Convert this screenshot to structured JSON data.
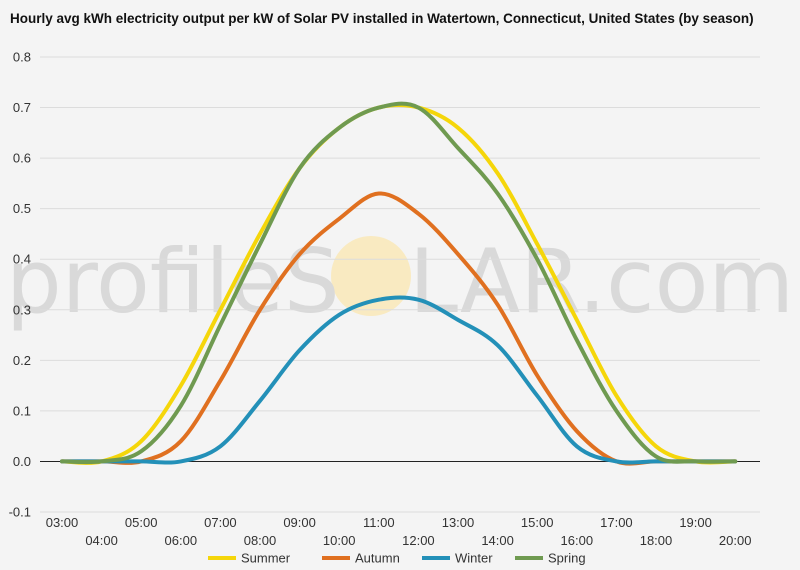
{
  "chart_data": {
    "type": "line",
    "title": "Hourly avg kWh electricity output per kW of Solar PV installed in Watertown, Connecticut, United States (by season)",
    "xlabel": "",
    "ylabel": "",
    "categories": [
      "03:00",
      "04:00",
      "05:00",
      "06:00",
      "07:00",
      "08:00",
      "09:00",
      "10:00",
      "11:00",
      "12:00",
      "13:00",
      "14:00",
      "15:00",
      "16:00",
      "17:00",
      "18:00",
      "19:00",
      "20:00"
    ],
    "ylim": [
      -0.1,
      0.8
    ],
    "yticks": [
      "-0.1",
      "0.0",
      "0.1",
      "0.2",
      "0.3",
      "0.4",
      "0.5",
      "0.6",
      "0.7",
      "0.8"
    ],
    "grid": true,
    "legend_position": "bottom",
    "series": [
      {
        "name": "Summer",
        "color": "#f5d60a",
        "values": [
          0,
          0,
          0.04,
          0.15,
          0.3,
          0.45,
          0.58,
          0.66,
          0.7,
          0.7,
          0.66,
          0.57,
          0.43,
          0.28,
          0.13,
          0.03,
          0,
          0
        ]
      },
      {
        "name": "Autumn",
        "color": "#e07020",
        "values": [
          0,
          0,
          0,
          0.04,
          0.16,
          0.3,
          0.41,
          0.48,
          0.53,
          0.49,
          0.41,
          0.31,
          0.17,
          0.06,
          0,
          0,
          0,
          0
        ]
      },
      {
        "name": "Winter",
        "color": "#2390b8",
        "values": [
          0,
          0,
          0,
          0,
          0.03,
          0.12,
          0.22,
          0.29,
          0.32,
          0.32,
          0.28,
          0.23,
          0.13,
          0.03,
          0,
          0,
          0,
          0
        ]
      },
      {
        "name": "Spring",
        "color": "#6f9a50",
        "values": [
          0,
          0,
          0.02,
          0.11,
          0.27,
          0.43,
          0.58,
          0.66,
          0.7,
          0.7,
          0.62,
          0.53,
          0.4,
          0.24,
          0.1,
          0.01,
          0,
          0
        ]
      }
    ]
  },
  "watermark": {
    "text": "profileSOLAR.com",
    "prefix": "profileS",
    "middle": "O",
    "suffix": "LAR.com"
  }
}
